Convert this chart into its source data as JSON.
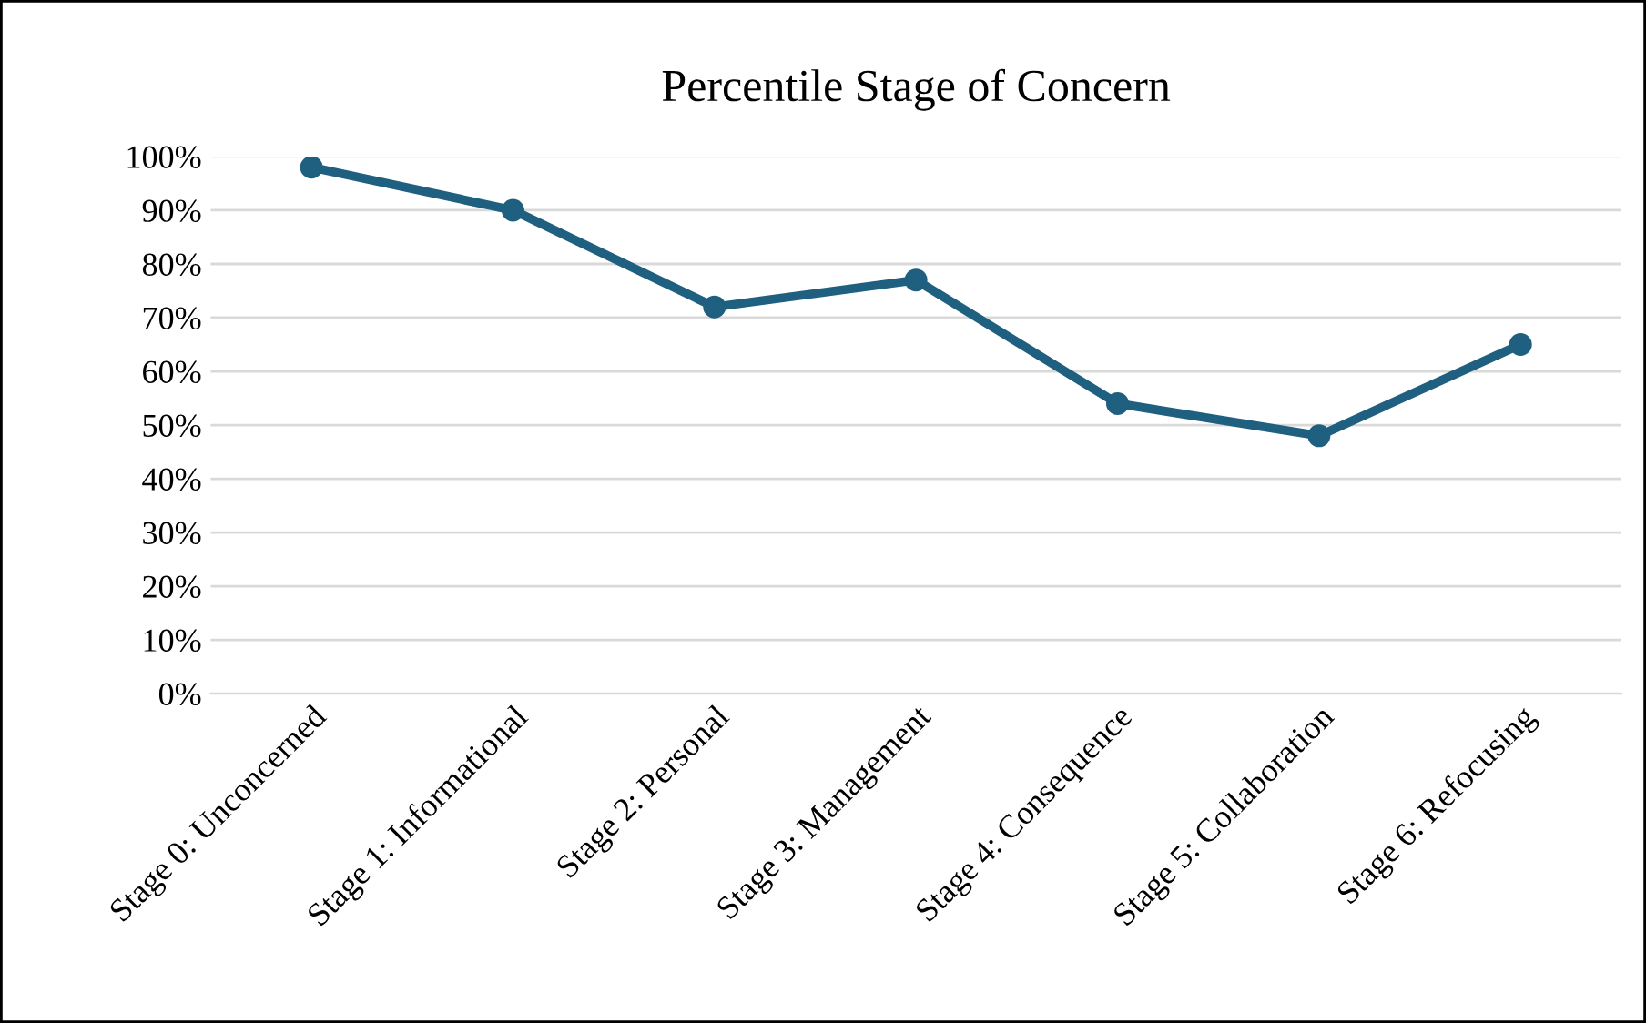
{
  "chart_data": {
    "type": "line",
    "title": "Percentile Stage of Concern",
    "categories": [
      "Stage 0: Unconcerned",
      "Stage 1: Informational",
      "Stage 2: Personal",
      "Stage 3: Management",
      "Stage 4: Consequence",
      "Stage 5: Collaboration",
      "Stage 6: Refocusing"
    ],
    "series": [
      {
        "color": "#1f5f7f",
        "values": [
          98,
          90,
          72,
          77,
          54,
          48,
          65
        ]
      }
    ],
    "ylim": [
      0,
      100
    ],
    "yticks": [
      {
        "value": 0,
        "label": "0%"
      },
      {
        "value": 10,
        "label": "10%"
      },
      {
        "value": 20,
        "label": "20%"
      },
      {
        "value": 30,
        "label": "30%"
      },
      {
        "value": 40,
        "label": "40%"
      },
      {
        "value": 50,
        "label": "50%"
      },
      {
        "value": 60,
        "label": "60%"
      },
      {
        "value": 70,
        "label": "70%"
      },
      {
        "value": 80,
        "label": "80%"
      },
      {
        "value": 90,
        "label": "90%"
      },
      {
        "value": 100,
        "label": "100%"
      }
    ],
    "grid": "y",
    "marker": "circle",
    "line_style": "solid"
  }
}
